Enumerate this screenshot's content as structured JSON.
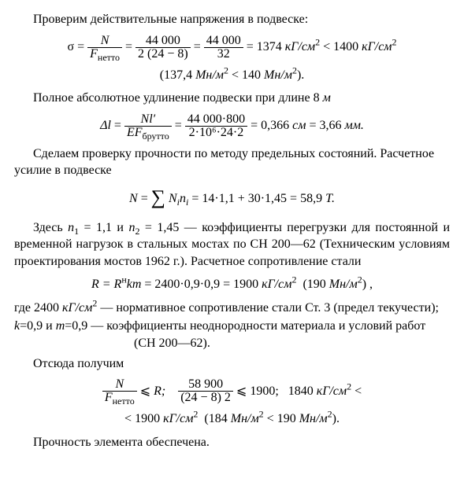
{
  "p1": "Проверим действительные напряжения в подвеске:",
  "f1": {
    "lhs_sym": "σ",
    "fr1_num": "N",
    "fr1_den_F": "F",
    "fr1_den_sub": "нетто",
    "fr2_num": "44 000",
    "fr2_den": "2 (24 − 8)",
    "fr3_num": "44 000",
    "fr3_den": "32",
    "val": "1374",
    "unit1": "кГ/см",
    "lt": "<",
    "cmp": "1400",
    "unit2": "кГ/см"
  },
  "f1b": {
    "open": "(",
    "v1": "137,4",
    "u1": "Мн/м",
    "lt": "<",
    "v2": "140",
    "u2": "Мн/м",
    "close": ")."
  },
  "p2": "Полное абсолютное удлинение подвески при длине 8 ",
  "p2m": "м",
  "f2": {
    "lhs": "Δl",
    "fr1_num": "Nl′",
    "fr1_den_E": "EF",
    "fr1_den_sub": "брутто",
    "fr2_num": "44 000·800",
    "fr2_den": "2·10⁶·24·2",
    "v1": "0,366",
    "u1": "см",
    "v2": "3,66",
    "u2": "мм."
  },
  "p3": "Сделаем проверку прочности по методу предельных состояний. Расчетное усилие в подвеске",
  "f3": {
    "lhs": "N",
    "rhs1": "N",
    "rhs1s": "i",
    "rhs2": "n",
    "rhs2s": "i",
    "nums": "14·1,1 + 30·1,45 = 58,9",
    "unit": "Т."
  },
  "p4a": "Здесь ",
  "p4n1": "n",
  "p4n1s": "1",
  "p4n1v": " = 1,1",
  "p4and": " и ",
  "p4n2": "n",
  "p4n2s": "2",
  "p4n2v": " = 1,45",
  "p4b": " — коэффициенты перегрузки для постоянной и временной нагрузок в стальных мостах по СН 200—62 (Техническим условиям проектирования мостов 1962 г.). Расчетное сопротивление стали",
  "f4": {
    "lhs": "R = R",
    "sup": "н",
    "mid": "km",
    "nums": " = 2400·0,9·0,9 = 1900 ",
    "u1": "кГ/см",
    "paren_v": "190",
    "paren_u": "Мн/м"
  },
  "p5a": "где  2400 ",
  "p5u": "кГ/см",
  "p5b": " — нормативное сопротивление стали Ст. 3 (предел текучести);",
  "p6a": "k",
  "p6av": "=0,9",
  "p6and": " и ",
  "p6b": "m",
  "p6bv": "=0,9",
  "p6c": " — коэффициенты неоднородности материала и условий работ (СН 200—62).",
  "p7": "Отсюда получим",
  "f5": {
    "fr1_num": "N",
    "fr1_den_F": "F",
    "fr1_den_sub": "нетто",
    "le": "⩽",
    "R": "R;",
    "fr2_num": "58 900",
    "fr2_den": "(24 − 8) 2",
    "cmp": "1900;",
    "v1": "1840",
    "u1": "кГ/см",
    "lt": "<"
  },
  "f5b": {
    "lt": "<",
    "v1": "1900",
    "u1": "кГ/см",
    "paren_v1": "184",
    "paren_u": "Мн/м",
    "lt2": "<",
    "paren_v2": "190"
  },
  "p8": "Прочность элемента обеспечена."
}
